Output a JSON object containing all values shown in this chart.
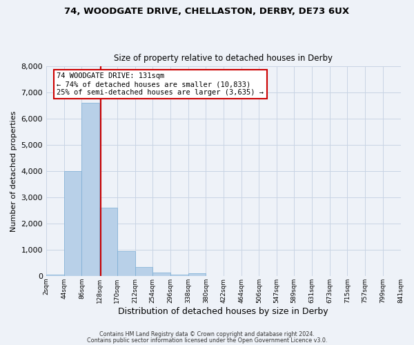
{
  "title1": "74, WOODGATE DRIVE, CHELLASTON, DERBY, DE73 6UX",
  "title2": "Size of property relative to detached houses in Derby",
  "xlabel": "Distribution of detached houses by size in Derby",
  "ylabel": "Number of detached properties",
  "bar_values": [
    50,
    4000,
    6600,
    2600,
    950,
    330,
    130,
    50,
    100,
    0,
    0,
    0,
    0,
    0,
    0,
    0,
    0,
    0,
    0,
    0
  ],
  "bin_edges": [
    2,
    44,
    86,
    128,
    170,
    212,
    254,
    296,
    338,
    380,
    422,
    464,
    506,
    547,
    589,
    631,
    673,
    715,
    757,
    799,
    841
  ],
  "tick_labels": [
    "2sqm",
    "44sqm",
    "86sqm",
    "128sqm",
    "170sqm",
    "212sqm",
    "254sqm",
    "296sqm",
    "338sqm",
    "380sqm",
    "422sqm",
    "464sqm",
    "506sqm",
    "547sqm",
    "589sqm",
    "631sqm",
    "673sqm",
    "715sqm",
    "757sqm",
    "799sqm",
    "841sqm"
  ],
  "ylim": [
    0,
    8000
  ],
  "yticks": [
    0,
    1000,
    2000,
    3000,
    4000,
    5000,
    6000,
    7000,
    8000
  ],
  "bar_color": "#b8d0e8",
  "bar_edge_color": "#7aadd4",
  "vline_x": 131,
  "vline_color": "#cc0000",
  "annotation_title": "74 WOODGATE DRIVE: 131sqm",
  "annotation_line1": "← 74% of detached houses are smaller (10,833)",
  "annotation_line2": "25% of semi-detached houses are larger (3,635) →",
  "annotation_box_color": "#cc0000",
  "grid_color": "#c8d4e4",
  "bg_color": "#eef2f8",
  "footer1": "Contains HM Land Registry data © Crown copyright and database right 2024.",
  "footer2": "Contains public sector information licensed under the Open Government Licence v3.0."
}
